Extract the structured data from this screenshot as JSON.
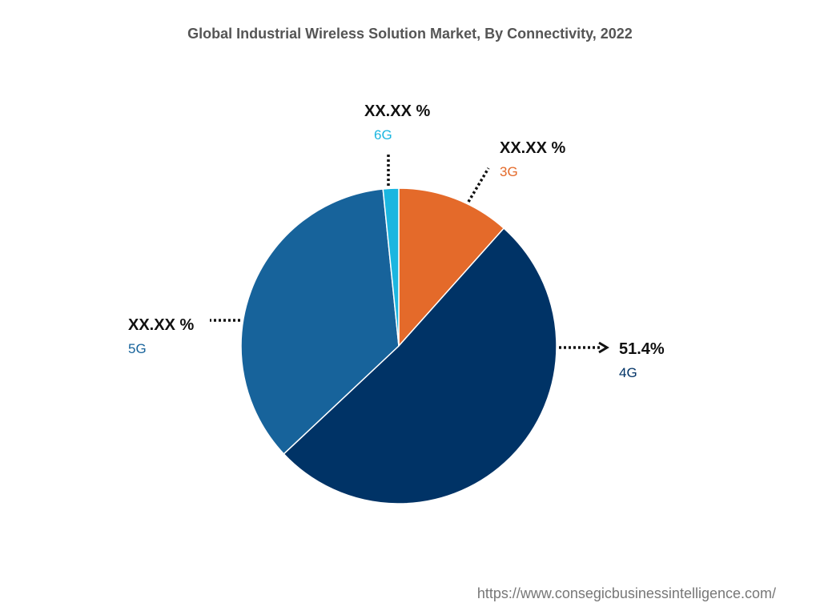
{
  "chart_data": {
    "type": "pie",
    "title": "Global Industrial Wireless Solution Market, By Connectivity, 2022",
    "start_angle_deg": 0,
    "direction": "clockwise",
    "slices": [
      {
        "category": "3G",
        "value": 11.6,
        "label": "XX.XX %",
        "color": "#e46a2a"
      },
      {
        "category": "4G",
        "value": 51.4,
        "label": "51.4%",
        "color": "#003366"
      },
      {
        "category": "5G",
        "value": 35.4,
        "label": "XX.XX %",
        "color": "#17639b"
      },
      {
        "category": "6G",
        "value": 1.6,
        "label": "XX.XX %",
        "color": "#1bb6e0"
      }
    ]
  },
  "footer": {
    "url": "https://www.consegicbusinessintelligence.com/"
  }
}
